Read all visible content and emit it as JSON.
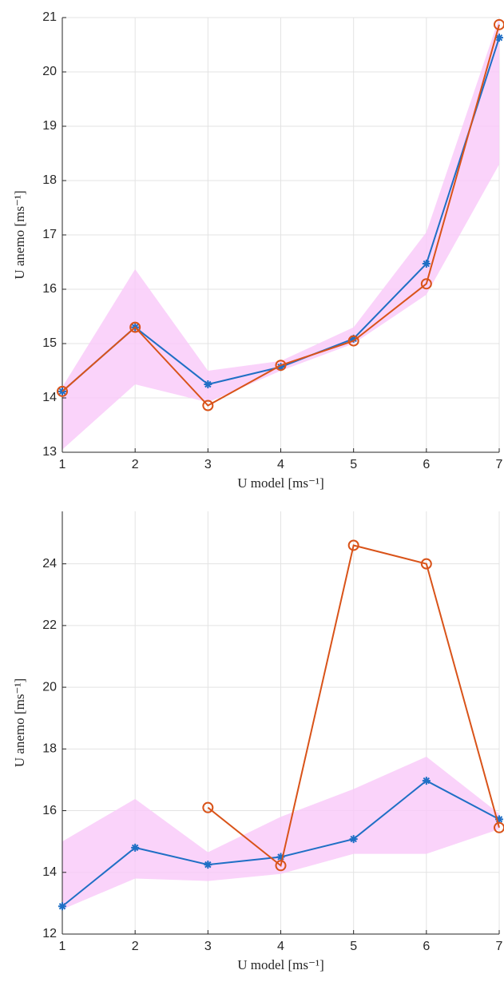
{
  "chart_data": [
    {
      "type": "line",
      "xlabel": "U model   [ms⁻¹]",
      "ylabel": "U anemo   [ms⁻¹]",
      "x": [
        1,
        2,
        3,
        4,
        5,
        6,
        7
      ],
      "series": [
        {
          "color": "#1f6fc5",
          "marker": "asterisk",
          "values": [
            14.12,
            15.3,
            14.25,
            14.57,
            15.09,
            16.47,
            20.63
          ]
        },
        {
          "color": "#d95319",
          "marker": "circle",
          "values": [
            14.12,
            15.3,
            13.86,
            14.6,
            15.05,
            16.1,
            20.87
          ]
        }
      ],
      "band": {
        "color": "#f9c8f9",
        "lower": [
          13.05,
          14.25,
          13.92,
          14.5,
          15.0,
          15.9,
          18.3
        ],
        "upper": [
          14.2,
          16.37,
          14.5,
          14.68,
          15.3,
          17.05,
          21.0
        ]
      },
      "xlim": [
        1,
        7
      ],
      "xticks": [
        1,
        2,
        3,
        4,
        5,
        6,
        7
      ],
      "ylim": [
        13,
        21
      ],
      "yticks": [
        13,
        14,
        15,
        16,
        17,
        18,
        19,
        20,
        21
      ],
      "grid": true
    },
    {
      "type": "line",
      "xlabel": "U model   [ms⁻¹]",
      "ylabel": "U anemo   [ms⁻¹]",
      "x": [
        1,
        2,
        3,
        4,
        5,
        6,
        7
      ],
      "series": [
        {
          "color": "#1f6fc5",
          "marker": "asterisk",
          "values": [
            12.9,
            14.8,
            14.25,
            14.5,
            15.08,
            16.97,
            15.72
          ]
        },
        {
          "color": "#d95319",
          "marker": "circle",
          "values": [
            null,
            null,
            16.1,
            14.22,
            24.6,
            24.0,
            15.45
          ]
        }
      ],
      "band": {
        "color": "#f9c8f9",
        "lower": [
          12.8,
          13.8,
          13.72,
          13.95,
          14.6,
          14.6,
          15.4
        ],
        "upper": [
          15.0,
          16.38,
          14.65,
          15.8,
          16.7,
          17.75,
          15.9
        ]
      },
      "xlim": [
        1,
        7
      ],
      "xticks": [
        1,
        2,
        3,
        4,
        5,
        6,
        7
      ],
      "ylim": [
        12,
        25.7
      ],
      "yticks": [
        12,
        14,
        16,
        18,
        20,
        22,
        24
      ],
      "grid": true
    }
  ]
}
